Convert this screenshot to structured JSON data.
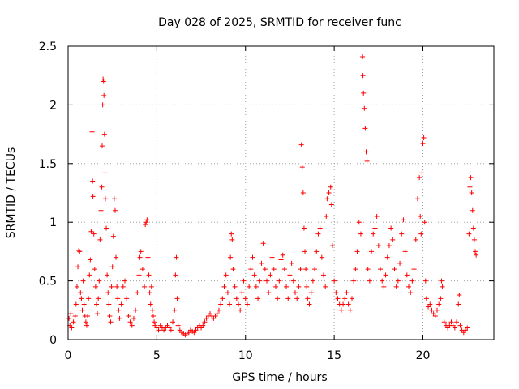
{
  "chart_data": {
    "type": "scatter",
    "title": "Day 028 of 2025, SRMTID for receiver func",
    "xlabel": "GPS time / hours",
    "ylabel": "SRMTID / TECUs",
    "xlim": [
      0,
      24
    ],
    "ylim": [
      0,
      2.5
    ],
    "xticks": [
      0,
      5,
      10,
      15,
      20
    ],
    "xtick_labels": [
      "0",
      "5",
      "10",
      "15",
      "20"
    ],
    "yticks": [
      0,
      0.5,
      1,
      1.5,
      2,
      2.5
    ],
    "ytick_labels": [
      "0",
      "0.5",
      "1",
      "1.5",
      "2",
      "2.5"
    ],
    "grid": true,
    "marker": "plus",
    "color": "#ff0000",
    "series": [
      {
        "name": "SRMTID",
        "points": [
          [
            0.05,
            0.18
          ],
          [
            0.1,
            0.12
          ],
          [
            0.15,
            0.22
          ],
          [
            0.2,
            0.1
          ],
          [
            0.3,
            0.15
          ],
          [
            0.4,
            0.2
          ],
          [
            0.45,
            0.3
          ],
          [
            0.5,
            0.45
          ],
          [
            0.55,
            0.62
          ],
          [
            0.6,
            0.76
          ],
          [
            0.65,
            0.75
          ],
          [
            0.7,
            0.4
          ],
          [
            0.75,
            0.35
          ],
          [
            0.8,
            0.25
          ],
          [
            0.85,
            0.5
          ],
          [
            0.9,
            0.3
          ],
          [
            0.95,
            0.2
          ],
          [
            1.0,
            0.15
          ],
          [
            1.05,
            0.12
          ],
          [
            1.1,
            0.2
          ],
          [
            1.15,
            0.35
          ],
          [
            1.2,
            0.55
          ],
          [
            1.25,
            0.68
          ],
          [
            1.3,
            0.92
          ],
          [
            1.35,
            1.77
          ],
          [
            1.38,
            1.35
          ],
          [
            1.4,
            1.22
          ],
          [
            1.45,
            0.9
          ],
          [
            1.5,
            0.6
          ],
          [
            1.55,
            0.45
          ],
          [
            1.6,
            0.3
          ],
          [
            1.65,
            0.22
          ],
          [
            1.7,
            0.35
          ],
          [
            1.75,
            0.5
          ],
          [
            1.8,
            0.85
          ],
          [
            1.85,
            1.1
          ],
          [
            1.9,
            1.3
          ],
          [
            1.92,
            1.65
          ],
          [
            1.95,
            2.0
          ],
          [
            1.97,
            2.22
          ],
          [
            2.0,
            2.2
          ],
          [
            2.02,
            2.08
          ],
          [
            2.05,
            1.75
          ],
          [
            2.08,
            1.42
          ],
          [
            2.1,
            1.2
          ],
          [
            2.15,
            0.95
          ],
          [
            2.2,
            0.55
          ],
          [
            2.25,
            0.4
          ],
          [
            2.3,
            0.3
          ],
          [
            2.35,
            0.2
          ],
          [
            2.4,
            0.15
          ],
          [
            2.45,
            0.45
          ],
          [
            2.5,
            0.62
          ],
          [
            2.55,
            0.88
          ],
          [
            2.6,
            1.2
          ],
          [
            2.65,
            1.1
          ],
          [
            2.7,
            0.7
          ],
          [
            2.75,
            0.45
          ],
          [
            2.8,
            0.35
          ],
          [
            2.85,
            0.25
          ],
          [
            2.9,
            0.18
          ],
          [
            3.0,
            0.3
          ],
          [
            3.1,
            0.45
          ],
          [
            3.2,
            0.5
          ],
          [
            3.3,
            0.35
          ],
          [
            3.4,
            0.2
          ],
          [
            3.5,
            0.15
          ],
          [
            3.6,
            0.12
          ],
          [
            3.7,
            0.18
          ],
          [
            3.8,
            0.25
          ],
          [
            3.9,
            0.4
          ],
          [
            4.0,
            0.55
          ],
          [
            4.05,
            0.7
          ],
          [
            4.1,
            0.75
          ],
          [
            4.2,
            0.6
          ],
          [
            4.3,
            0.45
          ],
          [
            4.35,
            0.98
          ],
          [
            4.4,
            1.0
          ],
          [
            4.45,
            1.02
          ],
          [
            4.5,
            0.7
          ],
          [
            4.55,
            0.55
          ],
          [
            4.6,
            0.4
          ],
          [
            4.65,
            0.3
          ],
          [
            4.7,
            0.45
          ],
          [
            4.75,
            0.25
          ],
          [
            4.8,
            0.2
          ],
          [
            4.85,
            0.15
          ],
          [
            4.9,
            0.12
          ],
          [
            5.0,
            0.1
          ],
          [
            5.1,
            0.08
          ],
          [
            5.2,
            0.12
          ],
          [
            5.3,
            0.1
          ],
          [
            5.4,
            0.08
          ],
          [
            5.5,
            0.1
          ],
          [
            5.6,
            0.12
          ],
          [
            5.7,
            0.1
          ],
          [
            5.8,
            0.08
          ],
          [
            5.9,
            0.15
          ],
          [
            6.0,
            0.25
          ],
          [
            6.05,
            0.55
          ],
          [
            6.1,
            0.7
          ],
          [
            6.15,
            0.35
          ],
          [
            6.2,
            0.12
          ],
          [
            6.3,
            0.08
          ],
          [
            6.4,
            0.06
          ],
          [
            6.5,
            0.05
          ],
          [
            6.6,
            0.04
          ],
          [
            6.7,
            0.05
          ],
          [
            6.8,
            0.06
          ],
          [
            6.9,
            0.08
          ],
          [
            7.0,
            0.07
          ],
          [
            7.1,
            0.06
          ],
          [
            7.2,
            0.08
          ],
          [
            7.3,
            0.1
          ],
          [
            7.4,
            0.12
          ],
          [
            7.5,
            0.1
          ],
          [
            7.6,
            0.12
          ],
          [
            7.7,
            0.15
          ],
          [
            7.8,
            0.18
          ],
          [
            7.9,
            0.2
          ],
          [
            8.0,
            0.22
          ],
          [
            8.1,
            0.2
          ],
          [
            8.2,
            0.18
          ],
          [
            8.3,
            0.2
          ],
          [
            8.4,
            0.22
          ],
          [
            8.5,
            0.25
          ],
          [
            8.6,
            0.3
          ],
          [
            8.7,
            0.35
          ],
          [
            8.8,
            0.45
          ],
          [
            8.9,
            0.55
          ],
          [
            9.0,
            0.4
          ],
          [
            9.1,
            0.3
          ],
          [
            9.15,
            0.7
          ],
          [
            9.2,
            0.9
          ],
          [
            9.25,
            0.85
          ],
          [
            9.3,
            0.6
          ],
          [
            9.4,
            0.45
          ],
          [
            9.5,
            0.35
          ],
          [
            9.6,
            0.3
          ],
          [
            9.7,
            0.25
          ],
          [
            9.8,
            0.4
          ],
          [
            9.9,
            0.5
          ],
          [
            10.0,
            0.35
          ],
          [
            10.1,
            0.3
          ],
          [
            10.2,
            0.45
          ],
          [
            10.3,
            0.6
          ],
          [
            10.4,
            0.7
          ],
          [
            10.5,
            0.55
          ],
          [
            10.6,
            0.45
          ],
          [
            10.7,
            0.35
          ],
          [
            10.8,
            0.5
          ],
          [
            10.9,
            0.65
          ],
          [
            11.0,
            0.82
          ],
          [
            11.1,
            0.6
          ],
          [
            11.2,
            0.5
          ],
          [
            11.3,
            0.4
          ],
          [
            11.4,
            0.55
          ],
          [
            11.5,
            0.7
          ],
          [
            11.6,
            0.6
          ],
          [
            11.7,
            0.45
          ],
          [
            11.8,
            0.35
          ],
          [
            11.9,
            0.5
          ],
          [
            12.0,
            0.68
          ],
          [
            12.1,
            0.72
          ],
          [
            12.2,
            0.6
          ],
          [
            12.3,
            0.45
          ],
          [
            12.4,
            0.35
          ],
          [
            12.5,
            0.55
          ],
          [
            12.6,
            0.65
          ],
          [
            12.7,
            0.5
          ],
          [
            12.8,
            0.4
          ],
          [
            12.9,
            0.35
          ],
          [
            13.0,
            0.45
          ],
          [
            13.1,
            0.6
          ],
          [
            13.15,
            1.66
          ],
          [
            13.2,
            1.47
          ],
          [
            13.25,
            1.25
          ],
          [
            13.3,
            0.95
          ],
          [
            13.35,
            0.75
          ],
          [
            13.4,
            0.6
          ],
          [
            13.45,
            0.45
          ],
          [
            13.5,
            0.35
          ],
          [
            13.6,
            0.3
          ],
          [
            13.7,
            0.4
          ],
          [
            13.8,
            0.5
          ],
          [
            13.9,
            0.6
          ],
          [
            14.0,
            0.75
          ],
          [
            14.1,
            0.9
          ],
          [
            14.2,
            0.95
          ],
          [
            14.3,
            0.7
          ],
          [
            14.4,
            0.55
          ],
          [
            14.5,
            0.45
          ],
          [
            14.55,
            1.05
          ],
          [
            14.6,
            1.2
          ],
          [
            14.7,
            1.25
          ],
          [
            14.8,
            1.3
          ],
          [
            14.85,
            1.15
          ],
          [
            14.9,
            0.8
          ],
          [
            15.0,
            0.5
          ],
          [
            15.1,
            0.4
          ],
          [
            15.2,
            0.35
          ],
          [
            15.3,
            0.3
          ],
          [
            15.4,
            0.25
          ],
          [
            15.5,
            0.3
          ],
          [
            15.6,
            0.35
          ],
          [
            15.7,
            0.4
          ],
          [
            15.8,
            0.3
          ],
          [
            15.9,
            0.25
          ],
          [
            16.0,
            0.35
          ],
          [
            16.1,
            0.5
          ],
          [
            16.2,
            0.6
          ],
          [
            16.3,
            0.75
          ],
          [
            16.4,
            1.0
          ],
          [
            16.5,
            0.9
          ],
          [
            16.6,
            2.41
          ],
          [
            16.62,
            2.25
          ],
          [
            16.65,
            2.1
          ],
          [
            16.7,
            1.97
          ],
          [
            16.75,
            1.8
          ],
          [
            16.8,
            1.6
          ],
          [
            16.85,
            1.52
          ],
          [
            16.9,
            0.6
          ],
          [
            17.0,
            0.5
          ],
          [
            17.1,
            0.75
          ],
          [
            17.2,
            0.9
          ],
          [
            17.3,
            0.95
          ],
          [
            17.4,
            1.05
          ],
          [
            17.5,
            0.8
          ],
          [
            17.6,
            0.6
          ],
          [
            17.7,
            0.5
          ],
          [
            17.8,
            0.45
          ],
          [
            17.9,
            0.55
          ],
          [
            18.0,
            0.7
          ],
          [
            18.1,
            0.8
          ],
          [
            18.2,
            0.95
          ],
          [
            18.3,
            0.85
          ],
          [
            18.4,
            0.6
          ],
          [
            18.5,
            0.45
          ],
          [
            18.6,
            0.5
          ],
          [
            18.7,
            0.65
          ],
          [
            18.8,
            0.9
          ],
          [
            18.9,
            1.02
          ],
          [
            19.0,
            0.75
          ],
          [
            19.1,
            0.55
          ],
          [
            19.2,
            0.45
          ],
          [
            19.3,
            0.4
          ],
          [
            19.4,
            0.5
          ],
          [
            19.5,
            0.6
          ],
          [
            19.6,
            0.85
          ],
          [
            19.7,
            1.2
          ],
          [
            19.8,
            1.38
          ],
          [
            19.85,
            1.05
          ],
          [
            19.9,
            0.9
          ],
          [
            19.95,
            1.42
          ],
          [
            20.0,
            1.67
          ],
          [
            20.05,
            1.72
          ],
          [
            20.1,
            1.0
          ],
          [
            20.15,
            0.5
          ],
          [
            20.2,
            0.35
          ],
          [
            20.3,
            0.28
          ],
          [
            20.4,
            0.3
          ],
          [
            20.5,
            0.25
          ],
          [
            20.6,
            0.22
          ],
          [
            20.7,
            0.2
          ],
          [
            20.8,
            0.25
          ],
          [
            20.9,
            0.3
          ],
          [
            21.0,
            0.35
          ],
          [
            21.05,
            0.5
          ],
          [
            21.1,
            0.45
          ],
          [
            21.2,
            0.15
          ],
          [
            21.3,
            0.12
          ],
          [
            21.4,
            0.1
          ],
          [
            21.5,
            0.12
          ],
          [
            21.6,
            0.15
          ],
          [
            21.7,
            0.12
          ],
          [
            21.8,
            0.1
          ],
          [
            21.9,
            0.15
          ],
          [
            22.0,
            0.3
          ],
          [
            22.05,
            0.38
          ],
          [
            22.1,
            0.12
          ],
          [
            22.2,
            0.08
          ],
          [
            22.3,
            0.06
          ],
          [
            22.4,
            0.08
          ],
          [
            22.5,
            0.1
          ],
          [
            22.6,
            0.9
          ],
          [
            22.65,
            1.3
          ],
          [
            22.7,
            1.38
          ],
          [
            22.75,
            1.25
          ],
          [
            22.8,
            1.1
          ],
          [
            22.85,
            0.95
          ],
          [
            22.9,
            0.85
          ],
          [
            22.95,
            0.75
          ],
          [
            23.0,
            0.72
          ]
        ]
      }
    ]
  }
}
